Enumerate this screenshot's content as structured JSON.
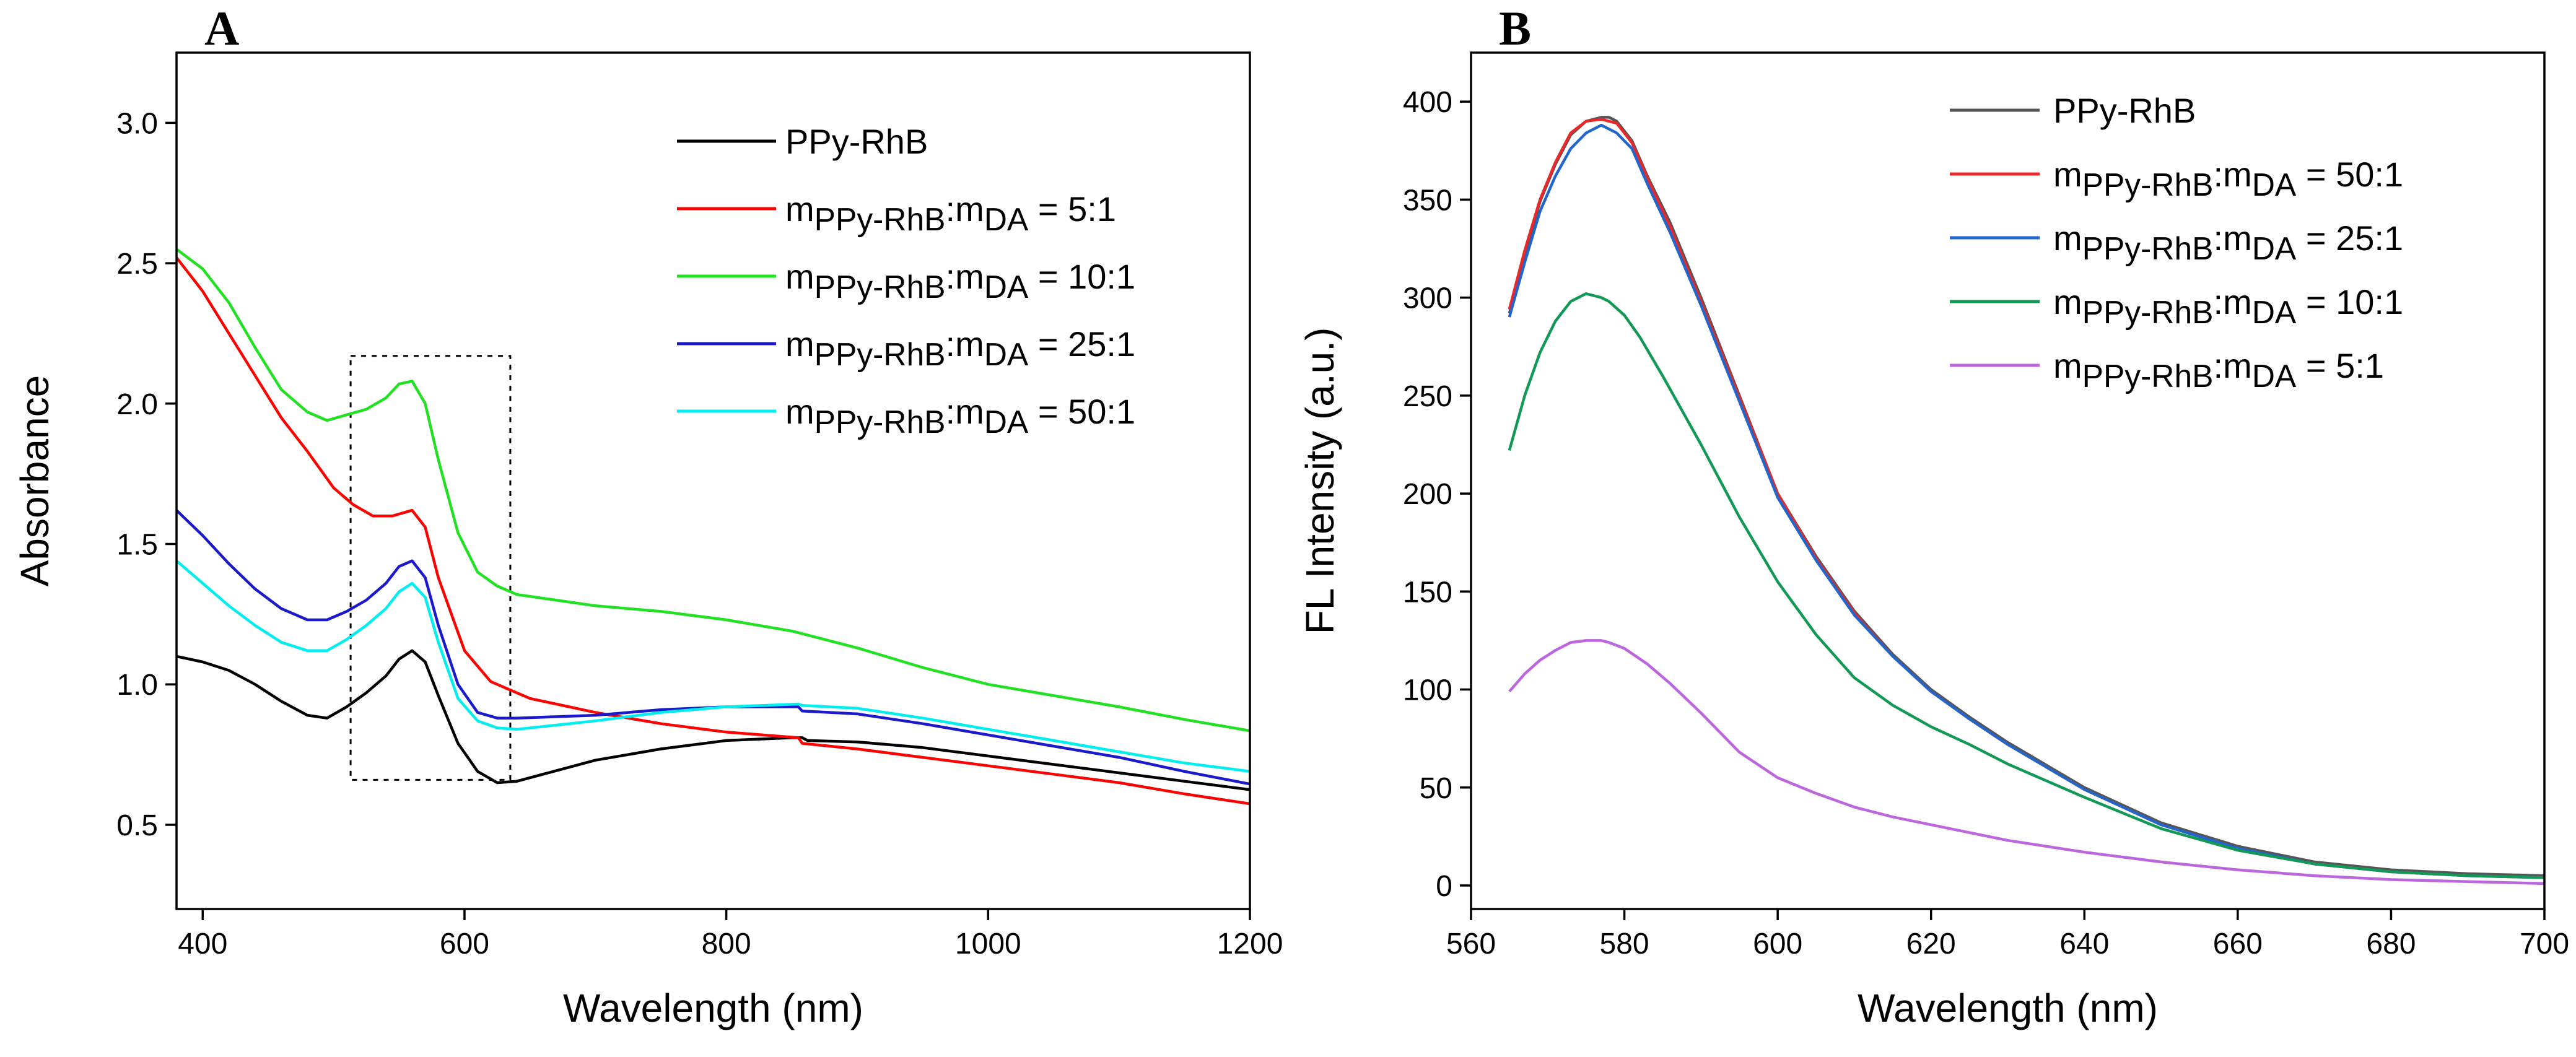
{
  "chart_data": [
    {
      "type": "line",
      "panel_label": "A",
      "xlabel": "Wavelength (nm)",
      "ylabel": "Absorbance",
      "xlim": [
        380,
        1200
      ],
      "ylim": [
        0.2,
        3.25
      ],
      "xticks": [
        400,
        600,
        800,
        1000,
        1200
      ],
      "yticks": [
        0.5,
        1.0,
        1.5,
        2.0,
        2.5,
        3.0
      ],
      "xtick_labels": [
        "400",
        "600",
        "800",
        "1000",
        "1200"
      ],
      "ytick_labels": [
        "0.5",
        "1.0",
        "1.5",
        "2.0",
        "2.5",
        "3.0"
      ],
      "legend_position": "top-right",
      "annotation_box": {
        "x_range": [
          513,
          635
        ],
        "y_range": [
          0.66,
          2.17
        ]
      },
      "series": [
        {
          "name": "PPy-RhB",
          "legend": {
            "pre": "PPy-RhB"
          },
          "color": "#000000",
          "x": [
            380,
            400,
            420,
            440,
            460,
            480,
            495,
            510,
            525,
            540,
            550,
            560,
            570,
            580,
            595,
            610,
            625,
            640,
            660,
            700,
            750,
            800,
            850,
            858,
            862,
            900,
            950,
            1000,
            1050,
            1100,
            1150,
            1200
          ],
          "y": [
            1.1,
            1.08,
            1.05,
            1.0,
            0.94,
            0.89,
            0.88,
            0.92,
            0.97,
            1.03,
            1.09,
            1.12,
            1.08,
            0.96,
            0.79,
            0.69,
            0.65,
            0.655,
            0.68,
            0.73,
            0.77,
            0.8,
            0.81,
            0.81,
            0.8,
            0.795,
            0.775,
            0.745,
            0.715,
            0.685,
            0.655,
            0.625
          ]
        },
        {
          "name": "mPPy-RhB:mDA = 5:1",
          "legend": {
            "pre": "m",
            "sub1": "PPy-RhB",
            "mid": ":m",
            "sub2": "DA",
            "post": " = 5:1"
          },
          "color": "#ff0000",
          "x": [
            380,
            400,
            420,
            440,
            460,
            480,
            500,
            515,
            530,
            545,
            560,
            570,
            580,
            600,
            620,
            650,
            700,
            750,
            800,
            855,
            858,
            900,
            950,
            1000,
            1050,
            1100,
            1150,
            1200
          ],
          "y": [
            2.52,
            2.4,
            2.25,
            2.1,
            1.95,
            1.83,
            1.7,
            1.64,
            1.6,
            1.6,
            1.62,
            1.56,
            1.38,
            1.12,
            1.01,
            0.95,
            0.9,
            0.86,
            0.83,
            0.81,
            0.79,
            0.77,
            0.74,
            0.71,
            0.68,
            0.65,
            0.61,
            0.575
          ]
        },
        {
          "name": "mPPy-RhB:mDA = 10:1",
          "legend": {
            "pre": "m",
            "sub1": "PPy-RhB",
            "mid": ":m",
            "sub2": "DA",
            "post": " = 10:1"
          },
          "color": "#22e022",
          "x": [
            380,
            400,
            420,
            440,
            460,
            480,
            495,
            510,
            525,
            540,
            550,
            560,
            570,
            580,
            595,
            610,
            625,
            640,
            700,
            750,
            800,
            850,
            900,
            950,
            1000,
            1050,
            1100,
            1150,
            1200
          ],
          "y": [
            2.55,
            2.48,
            2.36,
            2.2,
            2.05,
            1.97,
            1.94,
            1.96,
            1.98,
            2.02,
            2.07,
            2.08,
            2.0,
            1.8,
            1.54,
            1.4,
            1.35,
            1.32,
            1.28,
            1.26,
            1.23,
            1.19,
            1.13,
            1.06,
            1.0,
            0.96,
            0.92,
            0.875,
            0.835
          ]
        },
        {
          "name": "mPPy-RhB:mDA = 25:1",
          "legend": {
            "pre": "m",
            "sub1": "PPy-RhB",
            "mid": ":m",
            "sub2": "DA",
            "post": " = 25:1"
          },
          "color": "#1a1acc",
          "x": [
            380,
            400,
            420,
            440,
            460,
            480,
            495,
            510,
            525,
            540,
            550,
            560,
            570,
            580,
            595,
            610,
            625,
            640,
            700,
            750,
            800,
            855,
            858,
            900,
            950,
            1000,
            1050,
            1100,
            1150,
            1200
          ],
          "y": [
            1.62,
            1.53,
            1.43,
            1.34,
            1.27,
            1.23,
            1.23,
            1.26,
            1.3,
            1.36,
            1.42,
            1.44,
            1.38,
            1.21,
            1.0,
            0.9,
            0.88,
            0.88,
            0.89,
            0.91,
            0.92,
            0.92,
            0.905,
            0.895,
            0.86,
            0.82,
            0.78,
            0.74,
            0.69,
            0.645
          ]
        },
        {
          "name": "mPPy-RhB:mDA = 50:1",
          "legend": {
            "pre": "m",
            "sub1": "PPy-RhB",
            "mid": ":m",
            "sub2": "DA",
            "post": " = 50:1"
          },
          "color": "#00eeee",
          "x": [
            380,
            400,
            420,
            440,
            460,
            480,
            495,
            510,
            525,
            540,
            550,
            560,
            570,
            580,
            595,
            610,
            625,
            640,
            700,
            750,
            800,
            855,
            858,
            900,
            950,
            1000,
            1050,
            1100,
            1150,
            1200
          ],
          "y": [
            1.44,
            1.36,
            1.28,
            1.21,
            1.15,
            1.12,
            1.12,
            1.16,
            1.21,
            1.27,
            1.33,
            1.36,
            1.31,
            1.15,
            0.95,
            0.87,
            0.845,
            0.84,
            0.87,
            0.9,
            0.92,
            0.93,
            0.925,
            0.915,
            0.88,
            0.84,
            0.8,
            0.76,
            0.72,
            0.69
          ]
        }
      ]
    },
    {
      "type": "line",
      "panel_label": "B",
      "xlabel": "Wavelength (nm)",
      "ylabel": "FL Intensity (a.u.)",
      "xlim": [
        560,
        700
      ],
      "ylim": [
        -12,
        425
      ],
      "xticks": [
        560,
        580,
        600,
        620,
        640,
        660,
        680,
        700
      ],
      "yticks": [
        0,
        50,
        100,
        150,
        200,
        250,
        300,
        350,
        400
      ],
      "xtick_labels": [
        "560",
        "580",
        "600",
        "620",
        "640",
        "660",
        "680",
        "700"
      ],
      "ytick_labels": [
        "0",
        "50",
        "100",
        "150",
        "200",
        "250",
        "300",
        "350",
        "400"
      ],
      "legend_position": "top-right",
      "series": [
        {
          "name": "PPy-RhB",
          "legend": {
            "pre": "PPy-RhB"
          },
          "color": "#555555",
          "x": [
            565,
            567,
            569,
            571,
            573,
            575,
            577,
            578,
            579,
            581,
            583,
            586,
            590,
            595,
            600,
            605,
            610,
            615,
            620,
            625,
            630,
            640,
            650,
            660,
            670,
            680,
            690,
            700
          ],
          "y": [
            292,
            322,
            349,
            368,
            383,
            390,
            392,
            392,
            390,
            380,
            362,
            338,
            300,
            250,
            200,
            168,
            140,
            118,
            100,
            86,
            73,
            50,
            32,
            20,
            12,
            8,
            6,
            5
          ]
        },
        {
          "name": "mPPy-RhB:mDA = 50:1",
          "legend": {
            "pre": "m",
            "sub1": "PPy-RhB",
            "mid": ":m",
            "sub2": "DA",
            "post": " = 50:1"
          },
          "color": "#e8282a",
          "x": [
            565,
            567,
            569,
            571,
            573,
            575,
            577,
            578,
            579,
            581,
            583,
            586,
            590,
            595,
            600,
            605,
            610,
            615,
            620,
            625,
            630,
            640,
            650,
            660,
            670,
            680,
            690,
            700
          ],
          "y": [
            294,
            324,
            350,
            369,
            384,
            390,
            391,
            390,
            389,
            379,
            361,
            336,
            298,
            249,
            200,
            167,
            139,
            117,
            99,
            85,
            72,
            49,
            31,
            19,
            11,
            7,
            5,
            4
          ]
        },
        {
          "name": "mPPy-RhB:mDA = 25:1",
          "legend": {
            "pre": "m",
            "sub1": "PPy-RhB",
            "mid": ":m",
            "sub2": "DA",
            "post": " = 25:1"
          },
          "color": "#2266cc",
          "x": [
            565,
            567,
            569,
            571,
            573,
            575,
            577,
            578,
            579,
            581,
            583,
            586,
            590,
            595,
            600,
            605,
            610,
            615,
            620,
            625,
            630,
            640,
            650,
            660,
            670,
            680,
            690,
            700
          ],
          "y": [
            290,
            318,
            344,
            362,
            376,
            384,
            388,
            386,
            384,
            376,
            358,
            333,
            296,
            247,
            198,
            166,
            138,
            117,
            99,
            85,
            72,
            49,
            31,
            19,
            11,
            7,
            5,
            4
          ]
        },
        {
          "name": "mPPy-RhB:mDA = 10:1",
          "legend": {
            "pre": "m",
            "sub1": "PPy-RhB",
            "mid": ":m",
            "sub2": "DA",
            "post": " = 10:1"
          },
          "color": "#119955",
          "x": [
            565,
            567,
            569,
            571,
            573,
            575,
            576,
            577,
            578,
            580,
            582,
            585,
            590,
            595,
            600,
            605,
            610,
            615,
            620,
            625,
            630,
            640,
            650,
            660,
            670,
            680,
            690,
            700
          ],
          "y": [
            222,
            250,
            272,
            288,
            298,
            302,
            301,
            300,
            298,
            291,
            280,
            260,
            225,
            188,
            155,
            128,
            106,
            92,
            81,
            72,
            62,
            45,
            29,
            18,
            11,
            7,
            5,
            4
          ]
        },
        {
          "name": "mPPy-RhB:mDA = 5:1",
          "legend": {
            "pre": "m",
            "sub1": "PPy-RhB",
            "mid": ":m",
            "sub2": "DA",
            "post": " = 5:1"
          },
          "color": "#bb66dd",
          "x": [
            565,
            567,
            569,
            571,
            573,
            575,
            577,
            578,
            580,
            583,
            586,
            590,
            595,
            600,
            605,
            610,
            615,
            620,
            625,
            630,
            640,
            650,
            660,
            670,
            680,
            690,
            700
          ],
          "y": [
            99,
            108,
            115,
            120,
            124,
            125,
            125,
            124,
            121,
            113,
            103,
            88,
            68,
            55,
            47,
            40,
            35,
            31,
            27,
            23,
            17,
            12,
            8,
            5,
            3,
            2,
            1
          ]
        }
      ]
    }
  ]
}
